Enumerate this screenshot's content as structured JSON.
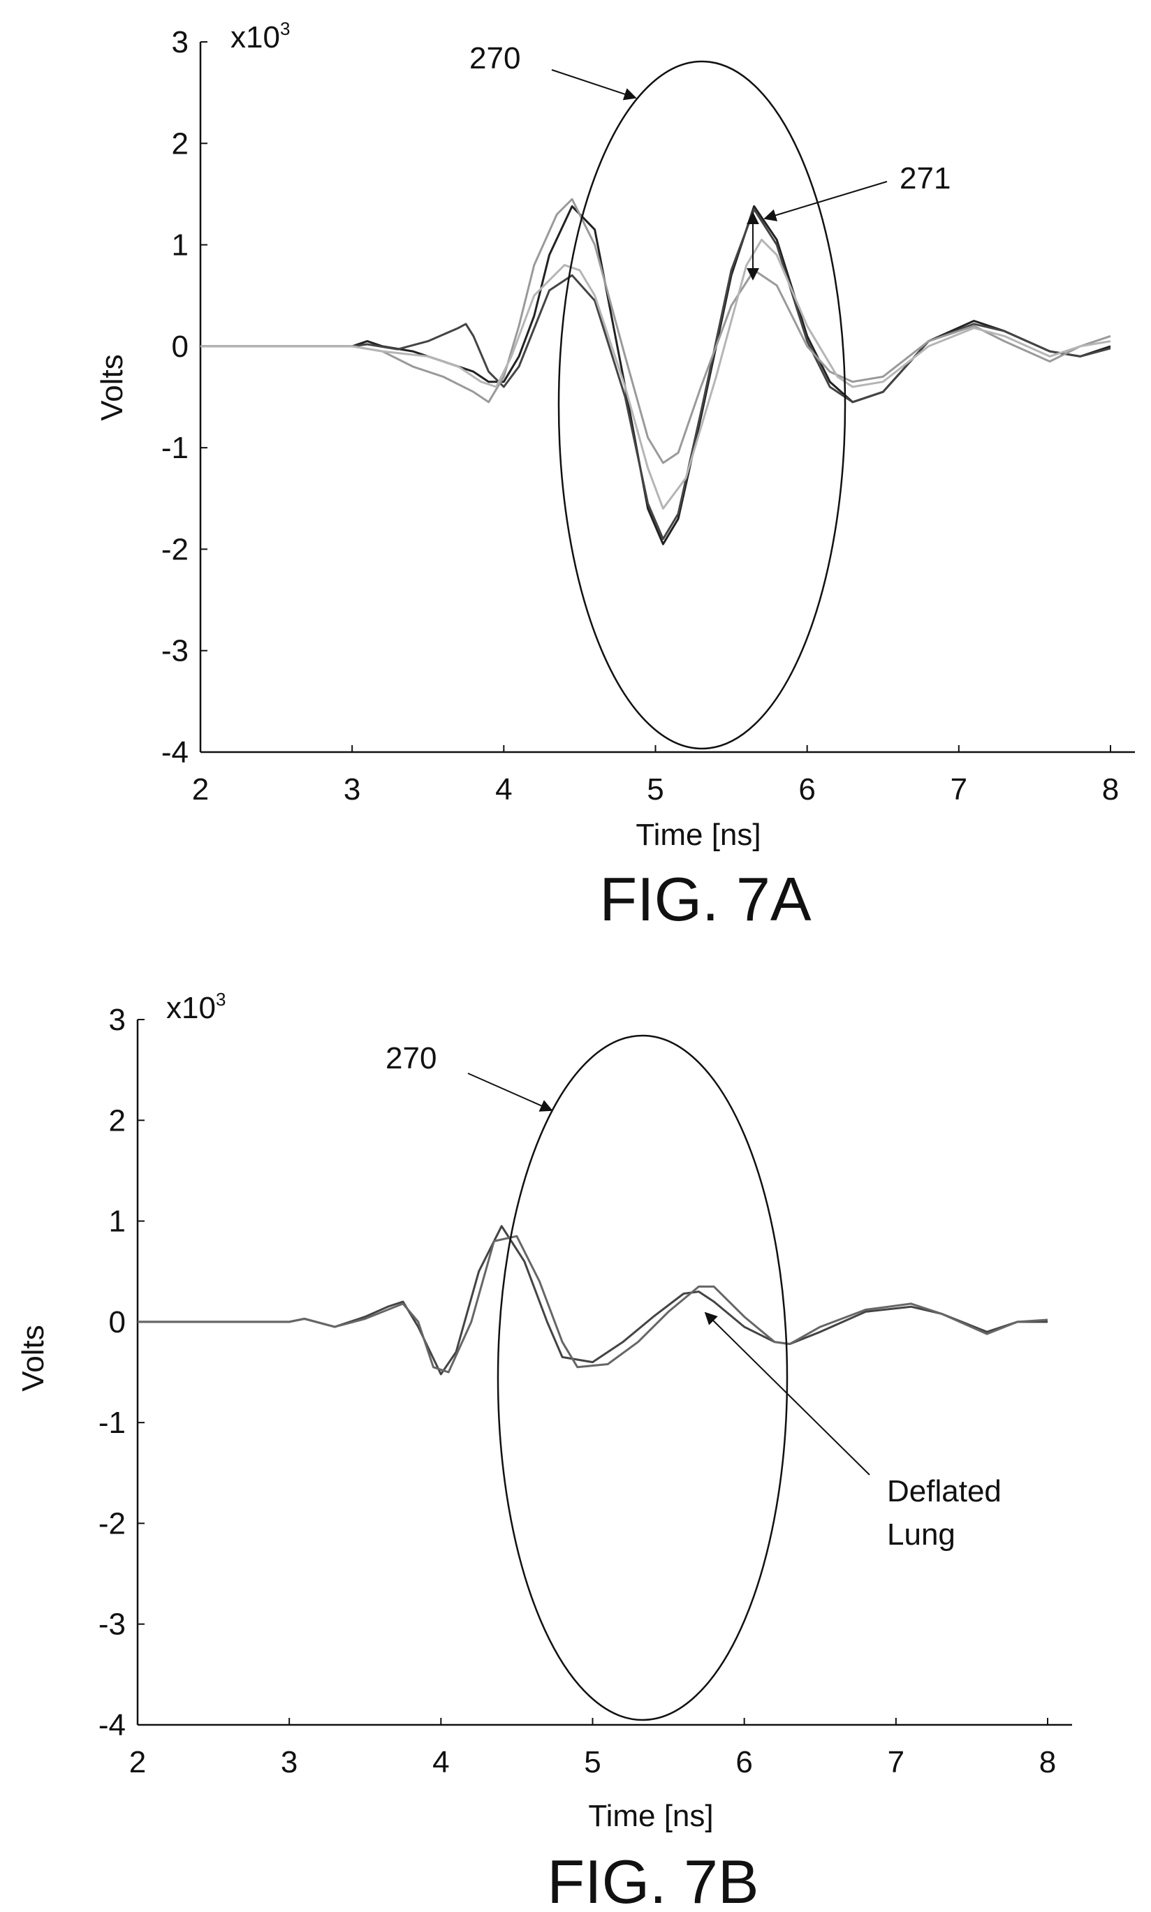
{
  "chart_data": [
    {
      "type": "line",
      "figure_label": "FIG. 7A",
      "xlabel": "Time [ns]",
      "ylabel": "Volts",
      "y_multiplier": "x10",
      "y_multiplier_exp": "3",
      "xlim": [
        2,
        8
      ],
      "ylim": [
        -4,
        3
      ],
      "xticks": [
        "2",
        "3",
        "4",
        "5",
        "6",
        "7",
        "8"
      ],
      "yticks": [
        "3",
        "2",
        "1",
        "0",
        "-1",
        "-2",
        "-3",
        "-4"
      ],
      "series": [
        {
          "color": "#222222",
          "x": [
            2.0,
            3.0,
            3.1,
            3.2,
            3.4,
            3.6,
            3.8,
            3.9,
            4.0,
            4.1,
            4.2,
            4.3,
            4.45,
            4.6,
            4.8,
            4.95,
            5.05,
            5.15,
            5.3,
            5.5,
            5.65,
            5.8,
            6.0,
            6.15,
            6.3,
            6.5,
            6.8,
            7.1,
            7.3,
            7.6,
            7.8,
            8.0
          ],
          "y": [
            0.0,
            0.0,
            0.05,
            0.0,
            -0.05,
            -0.15,
            -0.25,
            -0.35,
            -0.35,
            -0.1,
            0.3,
            0.9,
            1.38,
            1.15,
            -0.4,
            -1.6,
            -1.95,
            -1.7,
            -0.7,
            0.7,
            1.38,
            1.05,
            0.1,
            -0.35,
            -0.55,
            -0.45,
            0.05,
            0.25,
            0.15,
            -0.05,
            -0.1,
            0.0
          ]
        },
        {
          "color": "#444444",
          "x": [
            2.0,
            3.0,
            3.1,
            3.3,
            3.5,
            3.7,
            3.75,
            3.8,
            3.9,
            4.0,
            4.1,
            4.3,
            4.45,
            4.6,
            4.8,
            4.95,
            5.05,
            5.15,
            5.3,
            5.5,
            5.65,
            5.8,
            6.0,
            6.15,
            6.3,
            6.5,
            6.8,
            7.1,
            7.3,
            7.6,
            7.8,
            8.0
          ],
          "y": [
            0.0,
            0.0,
            0.02,
            -0.03,
            0.05,
            0.18,
            0.22,
            0.1,
            -0.25,
            -0.4,
            -0.2,
            0.55,
            0.7,
            0.45,
            -0.5,
            -1.55,
            -1.9,
            -1.65,
            -0.65,
            0.75,
            1.35,
            1.0,
            0.05,
            -0.4,
            -0.55,
            -0.45,
            0.05,
            0.22,
            0.15,
            -0.05,
            -0.1,
            -0.02
          ]
        },
        {
          "color": "#9a9a9a",
          "x": [
            2.0,
            3.0,
            3.2,
            3.4,
            3.6,
            3.8,
            3.9,
            4.0,
            4.1,
            4.2,
            4.35,
            4.45,
            4.6,
            4.8,
            4.95,
            5.05,
            5.15,
            5.3,
            5.5,
            5.65,
            5.8,
            6.0,
            6.15,
            6.3,
            6.5,
            6.8,
            7.1,
            7.3,
            7.6,
            7.8,
            8.0
          ],
          "y": [
            0.0,
            0.0,
            -0.05,
            -0.2,
            -0.3,
            -0.45,
            -0.55,
            -0.3,
            0.2,
            0.8,
            1.3,
            1.45,
            1.0,
            -0.1,
            -0.9,
            -1.15,
            -1.05,
            -0.4,
            0.4,
            0.75,
            0.6,
            0.0,
            -0.25,
            -0.35,
            -0.3,
            0.05,
            0.2,
            0.05,
            -0.15,
            0.0,
            0.1
          ]
        },
        {
          "color": "#b5b5b5",
          "x": [
            2.0,
            3.0,
            3.2,
            3.5,
            3.7,
            3.85,
            3.95,
            4.05,
            4.2,
            4.4,
            4.5,
            4.6,
            4.8,
            4.95,
            5.05,
            5.2,
            5.4,
            5.6,
            5.7,
            5.8,
            6.0,
            6.2,
            6.3,
            6.5,
            6.8,
            7.1,
            7.3,
            7.6,
            7.8,
            8.0
          ],
          "y": [
            0.0,
            0.0,
            -0.05,
            -0.1,
            -0.2,
            -0.35,
            -0.4,
            -0.1,
            0.5,
            0.8,
            0.75,
            0.5,
            -0.4,
            -1.2,
            -1.6,
            -1.3,
            -0.3,
            0.8,
            1.05,
            0.9,
            0.2,
            -0.3,
            -0.4,
            -0.35,
            0.0,
            0.18,
            0.1,
            -0.1,
            0.0,
            0.05
          ]
        }
      ],
      "annotations": [
        {
          "label": "270"
        },
        {
          "label": "271"
        }
      ]
    },
    {
      "type": "line",
      "figure_label": "FIG. 7B",
      "xlabel": "Time [ns]",
      "ylabel": "Volts",
      "y_multiplier": "x10",
      "y_multiplier_exp": "3",
      "xlim": [
        2,
        8
      ],
      "ylim": [
        -4,
        3
      ],
      "xticks": [
        "2",
        "3",
        "4",
        "5",
        "6",
        "7",
        "8"
      ],
      "yticks": [
        "3",
        "2",
        "1",
        "0",
        "-1",
        "-2",
        "-3",
        "-4"
      ],
      "series": [
        {
          "color": "#444444",
          "x": [
            2.0,
            3.0,
            3.1,
            3.3,
            3.5,
            3.65,
            3.75,
            3.85,
            4.0,
            4.1,
            4.25,
            4.4,
            4.55,
            4.7,
            4.8,
            5.0,
            5.2,
            5.4,
            5.6,
            5.7,
            5.8,
            6.0,
            6.2,
            6.3,
            6.5,
            6.8,
            7.1,
            7.3,
            7.6,
            7.8,
            8.0
          ],
          "y": [
            0.0,
            0.0,
            0.03,
            -0.05,
            0.05,
            0.15,
            0.2,
            -0.05,
            -0.52,
            -0.3,
            0.5,
            0.95,
            0.6,
            0.0,
            -0.35,
            -0.4,
            -0.2,
            0.05,
            0.28,
            0.3,
            0.2,
            -0.05,
            -0.2,
            -0.22,
            -0.1,
            0.1,
            0.15,
            0.08,
            -0.1,
            0.0,
            0.0
          ]
        },
        {
          "color": "#666666",
          "x": [
            2.0,
            3.0,
            3.1,
            3.3,
            3.5,
            3.65,
            3.75,
            3.85,
            3.95,
            4.05,
            4.2,
            4.35,
            4.5,
            4.65,
            4.8,
            4.9,
            5.1,
            5.3,
            5.5,
            5.7,
            5.8,
            6.0,
            6.2,
            6.3,
            6.5,
            6.8,
            7.1,
            7.3,
            7.6,
            7.8,
            8.0
          ],
          "y": [
            0.0,
            0.0,
            0.03,
            -0.05,
            0.03,
            0.12,
            0.18,
            0.0,
            -0.45,
            -0.5,
            0.0,
            0.8,
            0.85,
            0.4,
            -0.2,
            -0.45,
            -0.42,
            -0.2,
            0.1,
            0.35,
            0.35,
            0.05,
            -0.2,
            -0.22,
            -0.05,
            0.12,
            0.18,
            0.08,
            -0.12,
            0.0,
            0.02
          ]
        }
      ],
      "annotations": [
        {
          "label": "270"
        },
        {
          "label": "Deflated"
        },
        {
          "label": "Lung"
        }
      ]
    }
  ]
}
